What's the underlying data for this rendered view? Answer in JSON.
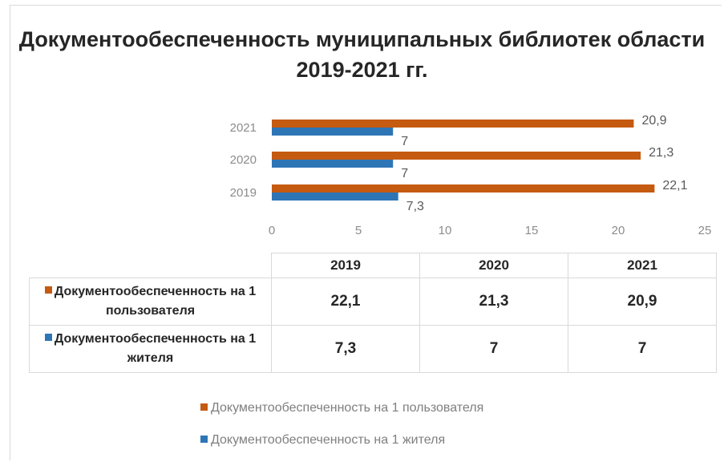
{
  "colors": {
    "users": "#c55a11",
    "residents": "#2e75b6"
  },
  "chart_data": {
    "type": "bar",
    "orientation": "horizontal",
    "title": "Документообеспеченность муниципальных библиотек области 2019-2021 гг.",
    "categories": [
      "2019",
      "2020",
      "2021"
    ],
    "series": [
      {
        "name": "Документообеспеченность на 1 пользователя",
        "values": [
          22.1,
          21.3,
          20.9
        ],
        "labels": [
          "22,1",
          "21,3",
          "20,9"
        ]
      },
      {
        "name": "Документообеспеченность на 1 жителя",
        "values": [
          7.3,
          7,
          7
        ],
        "labels": [
          "7,3",
          "7",
          "7"
        ]
      }
    ],
    "xlim": [
      0,
      25
    ],
    "xticks": [
      "0",
      "5",
      "10",
      "15",
      "20",
      "25"
    ],
    "grid": false,
    "legend_position": "bottom",
    "data_table": true
  },
  "table": {
    "headers": [
      "2019",
      "2020",
      "2021"
    ],
    "rows": [
      {
        "label": "Документообеспеченность на 1 пользователя",
        "values": [
          "22,1",
          "21,3",
          "20,9"
        ]
      },
      {
        "label": "Документообеспеченность на 1 жителя",
        "values": [
          "7,3",
          "7",
          "7"
        ]
      }
    ]
  }
}
